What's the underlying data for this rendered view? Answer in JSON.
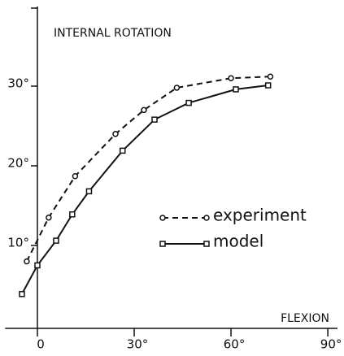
{
  "chart_data": {
    "type": "line",
    "y_label": "INTERNAL ROTATION",
    "x_label": "FLEXION",
    "xlim": [
      -10,
      93
    ],
    "ylim": [
      0,
      40
    ],
    "xticks": [
      0,
      {
        "value": 30,
        "label": "30°"
      },
      {
        "value": 60,
        "label": "60°"
      },
      {
        "value": 90,
        "label": "90°"
      }
    ],
    "yticks": [
      {
        "value": 10,
        "label": "10°"
      },
      {
        "value": 20,
        "label": "20°"
      },
      {
        "value": 30,
        "label": "30°"
      }
    ],
    "series": [
      {
        "name": "experiment",
        "color": "#111111",
        "dashed": true,
        "marker": "circle",
        "x": [
          -3.3,
          3.5,
          11.7,
          24.2,
          33,
          43.2,
          60,
          72.2
        ],
        "values": [
          8,
          13.5,
          18.7,
          24,
          27,
          29.8,
          31,
          31.2
        ]
      },
      {
        "name": "model",
        "color": "#111111",
        "dashed": false,
        "marker": "square",
        "x": [
          -4.8,
          0,
          5.8,
          10.8,
          16,
          26.4,
          36.3,
          46.9,
          61.5,
          71.5
        ],
        "values": [
          3.9,
          7.5,
          10.6,
          13.9,
          16.8,
          21.9,
          25.8,
          27.9,
          29.6,
          30.1
        ]
      }
    ]
  }
}
